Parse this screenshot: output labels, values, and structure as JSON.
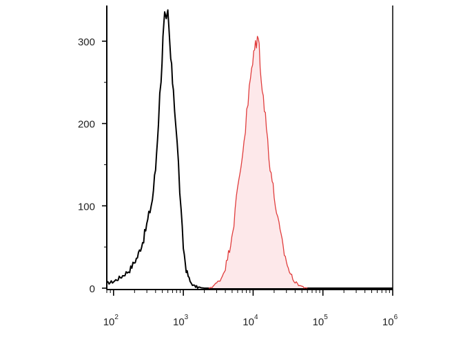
{
  "chart_data": {
    "type": "area",
    "title": "",
    "xlabel": "",
    "ylabel": "",
    "x_scale": "log",
    "xlim": [
      80,
      1000000
    ],
    "ylim": [
      0,
      340
    ],
    "grid": false,
    "legend": "none",
    "x_tick_labels": [
      {
        "base": "10",
        "exp": "2",
        "value": 100
      },
      {
        "base": "10",
        "exp": "3",
        "value": 1000
      },
      {
        "base": "10",
        "exp": "4",
        "value": 10000
      },
      {
        "base": "10",
        "exp": "5",
        "value": 100000
      },
      {
        "base": "10",
        "exp": "6",
        "value": 1000000
      }
    ],
    "y_tick_labels": [
      {
        "label": "0",
        "value": 0
      },
      {
        "label": "100",
        "value": 100
      },
      {
        "label": "200",
        "value": 200
      },
      {
        "label": "300",
        "value": 300
      }
    ],
    "series": [
      {
        "style": "outline",
        "color": "#000000",
        "points": [
          [
            80,
            6
          ],
          [
            100,
            8
          ],
          [
            130,
            14
          ],
          [
            170,
            22
          ],
          [
            220,
            38
          ],
          [
            270,
            60
          ],
          [
            320,
            88
          ],
          [
            360,
            108
          ],
          [
            400,
            145
          ],
          [
            440,
            205
          ],
          [
            480,
            260
          ],
          [
            510,
            300
          ],
          [
            540,
            325
          ],
          [
            570,
            318
          ],
          [
            600,
            330
          ],
          [
            640,
            295
          ],
          [
            680,
            262
          ],
          [
            720,
            245
          ],
          [
            780,
            200
          ],
          [
            850,
            150
          ],
          [
            930,
            90
          ],
          [
            1000,
            50
          ],
          [
            1100,
            22
          ],
          [
            1250,
            8
          ],
          [
            1400,
            3
          ],
          [
            1600,
            1
          ],
          [
            2000,
            0
          ],
          [
            1000000,
            0
          ]
        ]
      },
      {
        "style": "filled",
        "color": "#e03c3c",
        "fill": "#fde8ea",
        "points": [
          [
            2300,
            0
          ],
          [
            2600,
            2
          ],
          [
            3000,
            6
          ],
          [
            3500,
            12
          ],
          [
            4000,
            25
          ],
          [
            4600,
            48
          ],
          [
            5300,
            80
          ],
          [
            6000,
            120
          ],
          [
            6700,
            150
          ],
          [
            7400,
            180
          ],
          [
            8100,
            210
          ],
          [
            8800,
            240
          ],
          [
            9500,
            265
          ],
          [
            10200,
            280
          ],
          [
            10800,
            298
          ],
          [
            11500,
            305
          ],
          [
            12200,
            292
          ],
          [
            13000,
            262
          ],
          [
            14000,
            232
          ],
          [
            15500,
            195
          ],
          [
            17500,
            150
          ],
          [
            20000,
            112
          ],
          [
            23500,
            75
          ],
          [
            28000,
            42
          ],
          [
            33000,
            20
          ],
          [
            40000,
            7
          ],
          [
            50000,
            2
          ],
          [
            60000,
            0
          ]
        ]
      }
    ]
  }
}
